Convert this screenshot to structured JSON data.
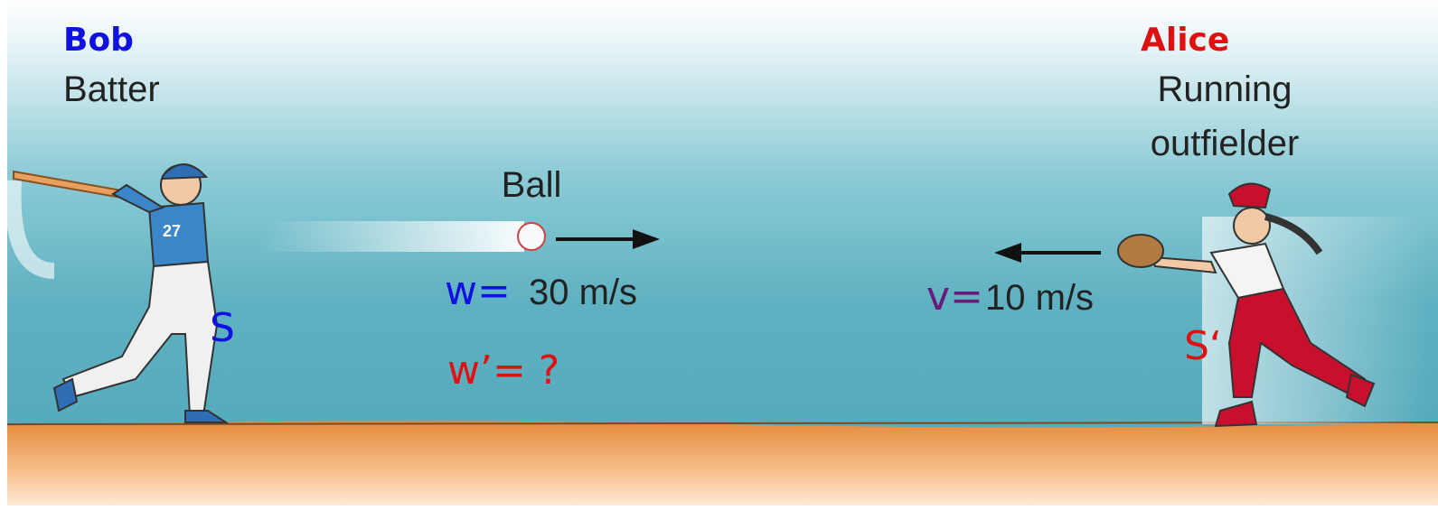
{
  "batter": {
    "name": "Bob",
    "role": "Batter",
    "frame": "S"
  },
  "ball": {
    "label": "Ball",
    "velocity_label": "w=",
    "velocity": "30 m/s",
    "relative_velocity": "w’= ?"
  },
  "outfielder": {
    "name": "Alice",
    "role": [
      "Running",
      "outfielder"
    ],
    "frame": "S‘",
    "velocity_label": "v=",
    "velocity": "10 m/s"
  }
}
